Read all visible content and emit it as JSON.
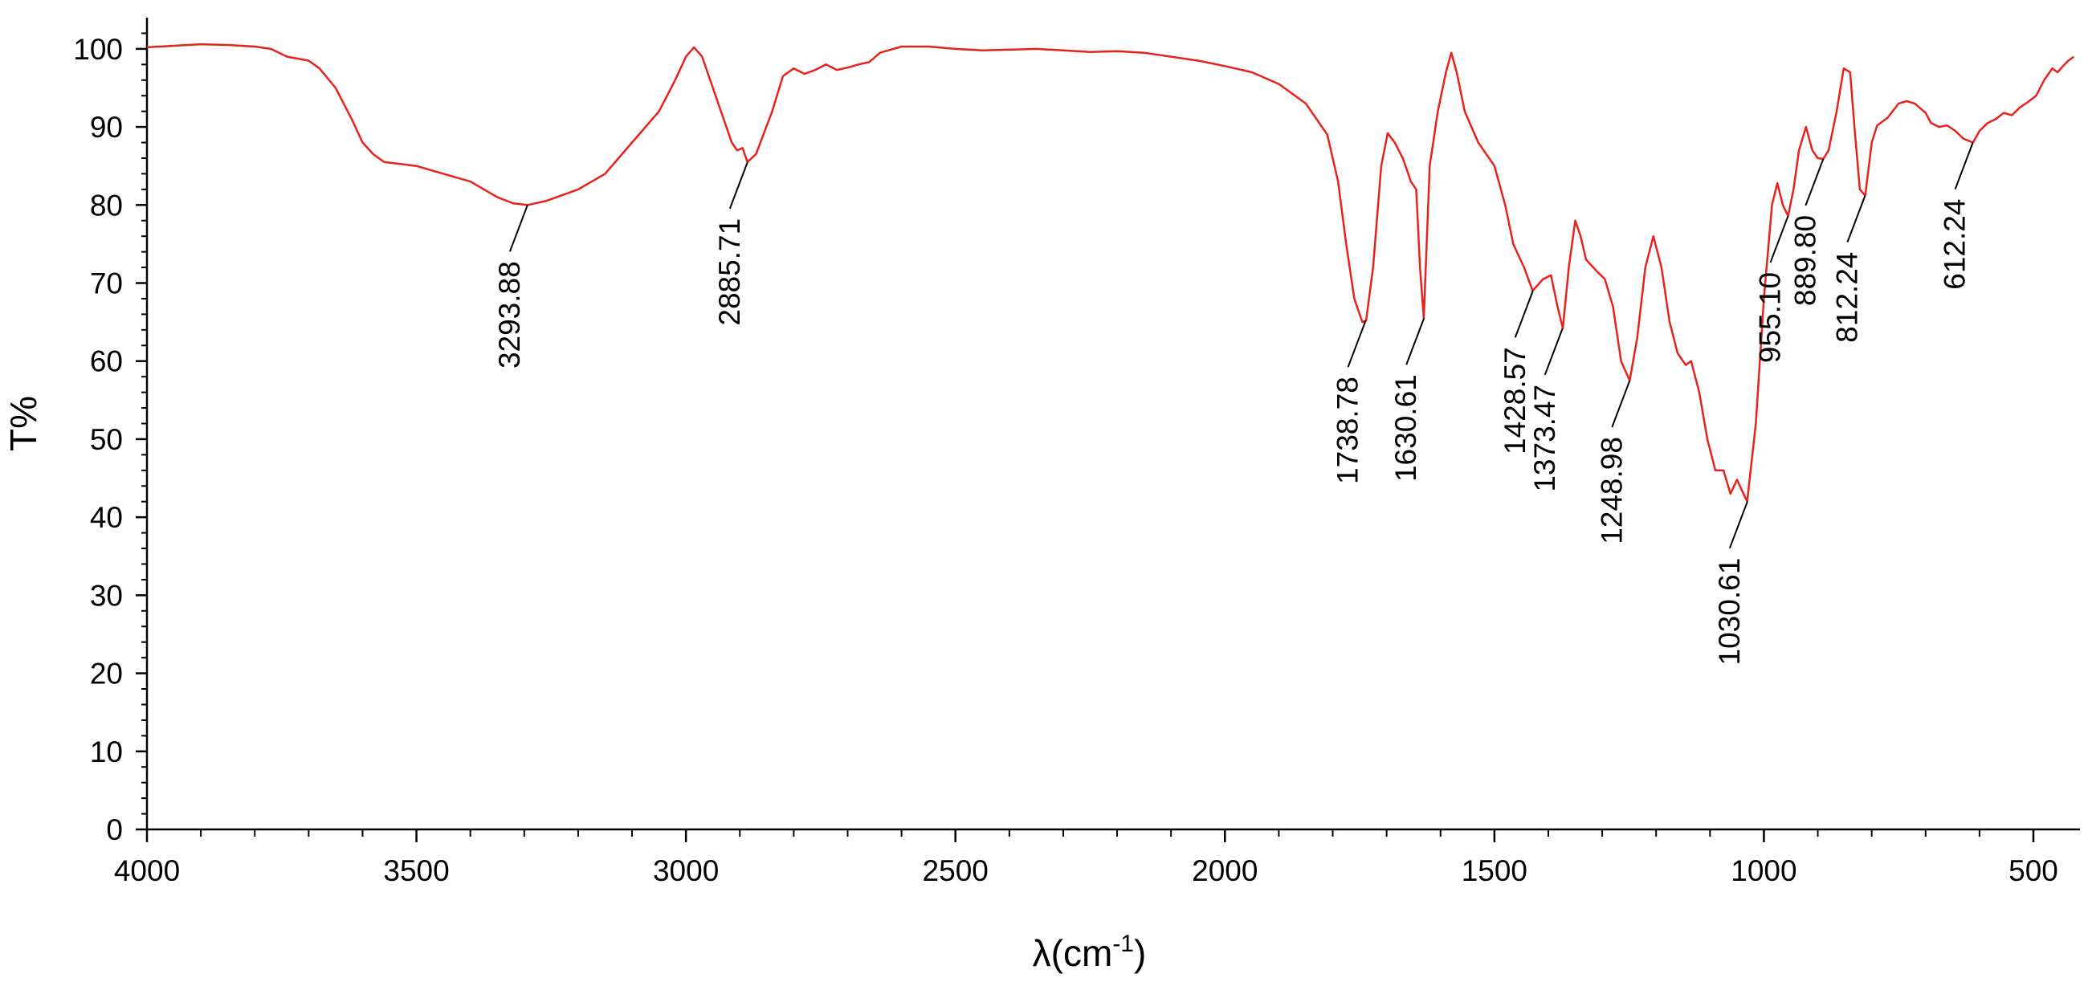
{
  "chart_data": {
    "type": "line",
    "title": "",
    "xlabel": "λ(cm",
    "xlabel_sup": "-1",
    "xlabel_suffix": ")",
    "ylabel": "T%",
    "xlim": [
      4000,
      400
    ],
    "ylim": [
      0,
      104
    ],
    "x_ticks": [
      4000,
      3500,
      3000,
      2500,
      2000,
      1500,
      1000,
      500
    ],
    "x_tick_labels": [
      "4000",
      "3500",
      "3000",
      "2500",
      "2000",
      "1500",
      "1000",
      "500"
    ],
    "y_ticks": [
      0,
      10,
      20,
      30,
      40,
      50,
      60,
      70,
      80,
      90,
      100
    ],
    "y_tick_labels": [
      "0",
      "10",
      "20",
      "30",
      "40",
      "50",
      "60",
      "70",
      "80",
      "90",
      "100"
    ],
    "grid": false,
    "line_color": "#e8221b",
    "series": [
      {
        "name": "spectrum",
        "points": [
          [
            4000,
            100.2
          ],
          [
            3950,
            100.4
          ],
          [
            3900,
            100.6
          ],
          [
            3850,
            100.5
          ],
          [
            3800,
            100.3
          ],
          [
            3770,
            100.0
          ],
          [
            3740,
            99.0
          ],
          [
            3700,
            98.5
          ],
          [
            3680,
            97.5
          ],
          [
            3650,
            95.0
          ],
          [
            3620,
            91.0
          ],
          [
            3600,
            88.0
          ],
          [
            3580,
            86.5
          ],
          [
            3560,
            85.5
          ],
          [
            3500,
            85.0
          ],
          [
            3450,
            84.0
          ],
          [
            3400,
            83.0
          ],
          [
            3350,
            81.0
          ],
          [
            3320,
            80.2
          ],
          [
            3294,
            80.0
          ],
          [
            3260,
            80.5
          ],
          [
            3200,
            82.0
          ],
          [
            3150,
            84.0
          ],
          [
            3100,
            88.0
          ],
          [
            3050,
            92.0
          ],
          [
            3020,
            96.0
          ],
          [
            3000,
            99.0
          ],
          [
            2985,
            100.2
          ],
          [
            2970,
            99.0
          ],
          [
            2950,
            95.0
          ],
          [
            2930,
            91.0
          ],
          [
            2915,
            88.0
          ],
          [
            2905,
            87.0
          ],
          [
            2895,
            87.3
          ],
          [
            2886,
            85.5
          ],
          [
            2870,
            86.5
          ],
          [
            2840,
            92.0
          ],
          [
            2820,
            96.5
          ],
          [
            2800,
            97.5
          ],
          [
            2780,
            96.8
          ],
          [
            2760,
            97.3
          ],
          [
            2740,
            98.0
          ],
          [
            2720,
            97.3
          ],
          [
            2700,
            97.6
          ],
          [
            2680,
            98.0
          ],
          [
            2660,
            98.3
          ],
          [
            2640,
            99.5
          ],
          [
            2600,
            100.3
          ],
          [
            2550,
            100.3
          ],
          [
            2500,
            100.0
          ],
          [
            2450,
            99.8
          ],
          [
            2400,
            99.9
          ],
          [
            2350,
            100.0
          ],
          [
            2300,
            99.8
          ],
          [
            2250,
            99.6
          ],
          [
            2200,
            99.7
          ],
          [
            2150,
            99.5
          ],
          [
            2100,
            99.0
          ],
          [
            2050,
            98.5
          ],
          [
            2000,
            97.8
          ],
          [
            1950,
            97.0
          ],
          [
            1900,
            95.5
          ],
          [
            1850,
            93.0
          ],
          [
            1810,
            89.0
          ],
          [
            1790,
            83.0
          ],
          [
            1775,
            75.0
          ],
          [
            1760,
            68.0
          ],
          [
            1745,
            65.0
          ],
          [
            1738,
            65.2
          ],
          [
            1725,
            72.0
          ],
          [
            1710,
            85.0
          ],
          [
            1698,
            89.2
          ],
          [
            1685,
            88.0
          ],
          [
            1670,
            86.0
          ],
          [
            1655,
            83.0
          ],
          [
            1645,
            82.0
          ],
          [
            1638,
            72.0
          ],
          [
            1631,
            65.5
          ],
          [
            1620,
            85.0
          ],
          [
            1605,
            92.0
          ],
          [
            1590,
            97.0
          ],
          [
            1580,
            99.5
          ],
          [
            1570,
            97.0
          ],
          [
            1555,
            92.0
          ],
          [
            1530,
            88.0
          ],
          [
            1500,
            85.0
          ],
          [
            1480,
            80.0
          ],
          [
            1465,
            75.0
          ],
          [
            1445,
            72.0
          ],
          [
            1429,
            69.0
          ],
          [
            1410,
            70.5
          ],
          [
            1395,
            71.0
          ],
          [
            1383,
            67.0
          ],
          [
            1373,
            64.2
          ],
          [
            1362,
            72.0
          ],
          [
            1350,
            78.0
          ],
          [
            1340,
            76.0
          ],
          [
            1330,
            73.0
          ],
          [
            1310,
            71.5
          ],
          [
            1295,
            70.5
          ],
          [
            1280,
            67.0
          ],
          [
            1265,
            60.0
          ],
          [
            1249,
            57.5
          ],
          [
            1235,
            63.0
          ],
          [
            1220,
            72.0
          ],
          [
            1205,
            76.0
          ],
          [
            1190,
            72.0
          ],
          [
            1175,
            65.0
          ],
          [
            1160,
            61.0
          ],
          [
            1145,
            59.5
          ],
          [
            1135,
            60.0
          ],
          [
            1120,
            56.0
          ],
          [
            1105,
            50.0
          ],
          [
            1090,
            46.0
          ],
          [
            1075,
            46.0
          ],
          [
            1062,
            43.0
          ],
          [
            1050,
            44.8
          ],
          [
            1031,
            42.0
          ],
          [
            1015,
            52.0
          ],
          [
            1000,
            68.0
          ],
          [
            985,
            80.0
          ],
          [
            975,
            82.8
          ],
          [
            965,
            80.0
          ],
          [
            955,
            78.6
          ],
          [
            945,
            82.0
          ],
          [
            935,
            87.0
          ],
          [
            922,
            90.0
          ],
          [
            910,
            87.0
          ],
          [
            900,
            86.0
          ],
          [
            890,
            85.9
          ],
          [
            880,
            87.0
          ],
          [
            865,
            92.0
          ],
          [
            852,
            97.5
          ],
          [
            840,
            97.0
          ],
          [
            832,
            90.0
          ],
          [
            822,
            82.0
          ],
          [
            812,
            81.2
          ],
          [
            800,
            88.0
          ],
          [
            790,
            90.2
          ],
          [
            770,
            91.2
          ],
          [
            750,
            93.0
          ],
          [
            735,
            93.3
          ],
          [
            720,
            93.0
          ],
          [
            700,
            91.8
          ],
          [
            690,
            90.5
          ],
          [
            675,
            90.0
          ],
          [
            660,
            90.2
          ],
          [
            645,
            89.5
          ],
          [
            630,
            88.5
          ],
          [
            612,
            88.0
          ],
          [
            600,
            89.5
          ],
          [
            585,
            90.5
          ],
          [
            570,
            91.0
          ],
          [
            555,
            91.8
          ],
          [
            540,
            91.5
          ],
          [
            525,
            92.5
          ],
          [
            510,
            93.2
          ],
          [
            495,
            94.0
          ],
          [
            480,
            96.0
          ],
          [
            465,
            97.5
          ],
          [
            455,
            97.0
          ],
          [
            445,
            97.8
          ],
          [
            435,
            98.5
          ],
          [
            425,
            99.0
          ]
        ]
      }
    ],
    "annotations": [
      {
        "label": "3293.88",
        "x": 3293.88,
        "y": 80.0,
        "text_y": 58
      },
      {
        "label": "2885.71",
        "x": 2885.71,
        "y": 85.5,
        "text_y": 63.5
      },
      {
        "label": "1738.78",
        "x": 1738.78,
        "y": 65.2,
        "text_y": 43
      },
      {
        "label": "1630.61",
        "x": 1630.61,
        "y": 65.5,
        "text_y": 43
      },
      {
        "label": "1428.57",
        "x": 1428.57,
        "y": 69.0,
        "text_y": 45.5
      },
      {
        "label": "1373.47",
        "x": 1373.47,
        "y": 64.2,
        "text_y": 42
      },
      {
        "label": "1248.98",
        "x": 1248.98,
        "y": 57.5,
        "text_y": 35
      },
      {
        "label": "1030.61",
        "x": 1030.61,
        "y": 42.0,
        "text_y": 19
      },
      {
        "label": "955.10",
        "x": 955.1,
        "y": 78.6,
        "text_y": 56
      },
      {
        "label": "889.80",
        "x": 889.8,
        "y": 85.9,
        "text_y": 62
      },
      {
        "label": "812.24",
        "x": 812.24,
        "y": 81.2,
        "text_y": 62
      },
      {
        "label": "612.24",
        "x": 612.24,
        "y": 88.0,
        "text_y": 68
      }
    ]
  }
}
